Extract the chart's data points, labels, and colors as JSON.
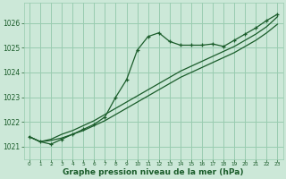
{
  "title": "Graphe pression niveau de la mer (hPa)",
  "bg_color": "#cce8d8",
  "grid_color": "#99ccb0",
  "line_color": "#1a5c2a",
  "xlim": [
    -0.5,
    23.5
  ],
  "ylim": [
    1020.5,
    1026.8
  ],
  "yticks": [
    1021,
    1022,
    1023,
    1024,
    1025,
    1026
  ],
  "xticks": [
    0,
    1,
    2,
    3,
    4,
    5,
    6,
    7,
    8,
    9,
    10,
    11,
    12,
    13,
    14,
    15,
    16,
    17,
    18,
    19,
    20,
    21,
    22,
    23
  ],
  "x": [
    0,
    1,
    2,
    3,
    4,
    5,
    6,
    7,
    8,
    9,
    10,
    11,
    12,
    13,
    14,
    15,
    16,
    17,
    18,
    19,
    20,
    21,
    22,
    23
  ],
  "y_main": [
    1021.4,
    1021.2,
    1021.1,
    1021.3,
    1021.5,
    1021.7,
    1021.9,
    1022.2,
    1023.0,
    1023.7,
    1024.9,
    1025.45,
    1025.6,
    1025.25,
    1025.1,
    1025.1,
    1025.1,
    1025.15,
    1025.05,
    1025.3,
    1025.55,
    1025.8,
    1026.1,
    1026.35
  ],
  "y_low": [
    1021.4,
    1021.2,
    1021.25,
    1021.35,
    1021.5,
    1021.65,
    1021.85,
    1022.05,
    1022.3,
    1022.55,
    1022.8,
    1023.05,
    1023.3,
    1023.55,
    1023.8,
    1024.0,
    1024.2,
    1024.4,
    1024.6,
    1024.8,
    1025.05,
    1025.3,
    1025.6,
    1025.95
  ],
  "y_high": [
    1021.4,
    1021.2,
    1021.3,
    1021.5,
    1021.65,
    1021.85,
    1022.05,
    1022.3,
    1022.55,
    1022.8,
    1023.05,
    1023.3,
    1023.55,
    1023.8,
    1024.05,
    1024.25,
    1024.45,
    1024.65,
    1024.85,
    1025.05,
    1025.3,
    1025.55,
    1025.85,
    1026.25
  ],
  "xlabel_fontsize": 6.5,
  "ytick_fontsize": 5.5,
  "xtick_fontsize": 4.2
}
